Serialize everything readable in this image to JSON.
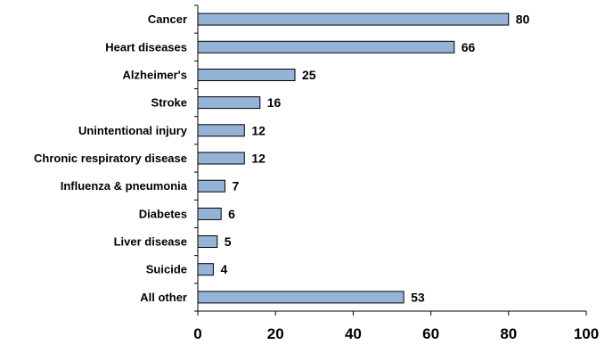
{
  "chart_data": {
    "type": "bar",
    "orientation": "horizontal",
    "categories": [
      "Cancer",
      "Heart diseases",
      "Alzheimer's",
      "Stroke",
      "Unintentional injury",
      "Chronic respiratory disease",
      "Influenza & pneumonia",
      "Diabetes",
      "Liver disease",
      "Suicide",
      "All other"
    ],
    "values": [
      80,
      66,
      25,
      16,
      12,
      12,
      7,
      6,
      5,
      4,
      53
    ],
    "value_labels": [
      "80",
      "66",
      "25",
      "16",
      "12",
      "12",
      "7",
      "6",
      "5",
      "4",
      "53"
    ],
    "xticks": [
      "0",
      "20",
      "40",
      "60",
      "80",
      "100"
    ],
    "xlim": [
      0,
      100
    ],
    "grid": false,
    "bar_color": "#95B3D7",
    "bar_border_color": "#000000"
  }
}
